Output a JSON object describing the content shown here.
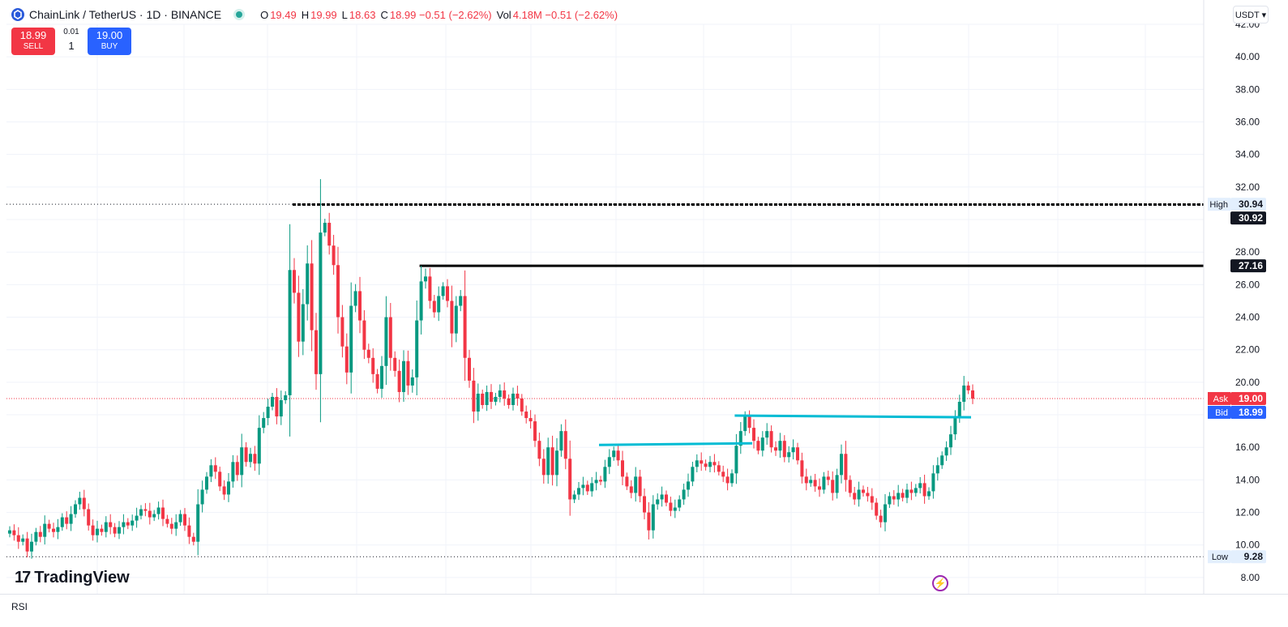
{
  "header": {
    "symbol": "ChainLink / TetherUS · 1D · BINANCE",
    "o_label": "O",
    "o_value": "19.49",
    "h_label": "H",
    "h_value": "19.99",
    "l_label": "L",
    "l_value": "18.63",
    "c_label": "C",
    "c_value": "18.99 −0.51 (−2.62%)",
    "vol_label": "Vol",
    "vol_value": "4.18M −0.51 (−2.62%)"
  },
  "trade": {
    "sell_price": "18.99",
    "sell_label": "SELL",
    "spread": "0.01",
    "qty": "1",
    "buy_price": "19.00",
    "buy_label": "BUY"
  },
  "currency": "USDT ▾",
  "branding": {
    "logo_mark": "17",
    "logo_text": "TradingView"
  },
  "indicator_pane": {
    "label": "RSI"
  },
  "colors": {
    "up": "#089981",
    "down": "#f23645",
    "level_line": "#000000",
    "trend_line": "#00bcd4",
    "ask": "#f23645",
    "bid": "#2962ff"
  },
  "chart_data": {
    "type": "candlestick",
    "ylim": [
      7,
      42
    ],
    "yticks": [
      "8.00",
      "10.00",
      "12.00",
      "14.00",
      "16.00",
      "18.00",
      "20.00",
      "22.00",
      "24.00",
      "26.00",
      "28.00",
      "30.00",
      "32.00",
      "34.00",
      "36.00",
      "38.00",
      "40.00",
      "42.00"
    ],
    "price_labels": [
      {
        "tag": "High",
        "value": "30.94",
        "price": 30.94
      },
      {
        "tag": "",
        "value": "30.92",
        "price": 30.92
      },
      {
        "tag": "",
        "value": "27.16",
        "price": 27.16
      },
      {
        "tag": "Ask",
        "value": "19.00",
        "price": 19.0
      },
      {
        "tag": "Bid",
        "value": "18.99",
        "price": 18.99
      },
      {
        "tag": "Low",
        "value": "9.28",
        "price": 9.28
      }
    ],
    "horizontal_levels": [
      {
        "price": 30.92,
        "from_index": 65,
        "style": "dashed"
      },
      {
        "price": 27.16,
        "from_index": 94,
        "style": "solid"
      }
    ],
    "trend_lines": [
      {
        "from_index": 135,
        "from_price": 16.15,
        "to_index": 170,
        "to_price": 16.25
      },
      {
        "from_index": 166,
        "from_price": 17.95,
        "to_index": 220,
        "to_price": 17.85
      }
    ],
    "closes": [
      10.9,
      10.6,
      10.2,
      10.4,
      9.6,
      10.2,
      10.8,
      10.5,
      11.3,
      11.0,
      10.8,
      11.1,
      11.7,
      11.3,
      11.9,
      12.5,
      12.9,
      12.2,
      11.2,
      10.6,
      11.0,
      10.8,
      11.4,
      11.1,
      10.7,
      11.1,
      11.4,
      11.2,
      11.5,
      11.8,
      12.2,
      12.1,
      11.7,
      11.9,
      12.3,
      11.6,
      11.3,
      11.0,
      11.4,
      11.9,
      11.2,
      10.5,
      10.2,
      12.5,
      13.4,
      14.2,
      14.9,
      14.5,
      13.6,
      13.1,
      13.9,
      15.1,
      14.3,
      16.0,
      15.1,
      15.6,
      15.0,
      17.2,
      17.8,
      18.5,
      19.1,
      17.9,
      18.9,
      19.2,
      26.9,
      25.5,
      22.5,
      24.8,
      27.3,
      23.2,
      20.5,
      29.2,
      29.8,
      28.4,
      27.2,
      24.0,
      22.2,
      20.6,
      24.7,
      25.6,
      23.8,
      22.0,
      21.5,
      20.5,
      19.6,
      21.0,
      24.0,
      21.5,
      20.7,
      19.4,
      21.3,
      19.8,
      20.3,
      23.8,
      26.2,
      26.5,
      25.0,
      24.3,
      25.3,
      25.9,
      25.0,
      23.0,
      24.7,
      25.3,
      21.5,
      20.1,
      18.2,
      19.3,
      18.6,
      19.4,
      18.8,
      19.1,
      19.5,
      19.0,
      18.6,
      19.3,
      19.0,
      18.2,
      17.8,
      17.6,
      16.4,
      15.3,
      14.3,
      16.0,
      14.3,
      15.8,
      17.0,
      15.3,
      12.8,
      13.1,
      13.5,
      13.7,
      13.3,
      13.8,
      14.0,
      13.9,
      14.8,
      15.4,
      15.8,
      15.2,
      14.2,
      13.6,
      13.2,
      14.2,
      13.0,
      12.0,
      10.9,
      12.5,
      12.8,
      13.1,
      12.6,
      12.1,
      12.3,
      12.8,
      13.4,
      13.9,
      14.8,
      15.2,
      15.0,
      14.8,
      15.1,
      14.9,
      14.5,
      14.2,
      13.8,
      14.4,
      16.1,
      17.0,
      17.9,
      17.2,
      16.4,
      15.8,
      16.6,
      17.0,
      16.0,
      15.8,
      16.4,
      15.4,
      15.7,
      16.0,
      15.2,
      14.2,
      13.8,
      14.0,
      13.6,
      13.4,
      14.2,
      14.0,
      13.2,
      14.3,
      15.6,
      14.0,
      13.2,
      12.8,
      13.4,
      13.2,
      13.0,
      12.6,
      11.8,
      11.4,
      12.5,
      13.0,
      12.8,
      13.2,
      12.9,
      13.4,
      13.2,
      13.5,
      13.8,
      13.0,
      13.3,
      14.4,
      14.9,
      15.5,
      16.0,
      16.8,
      17.9,
      18.8,
      19.8,
      19.5,
      18.99
    ]
  }
}
